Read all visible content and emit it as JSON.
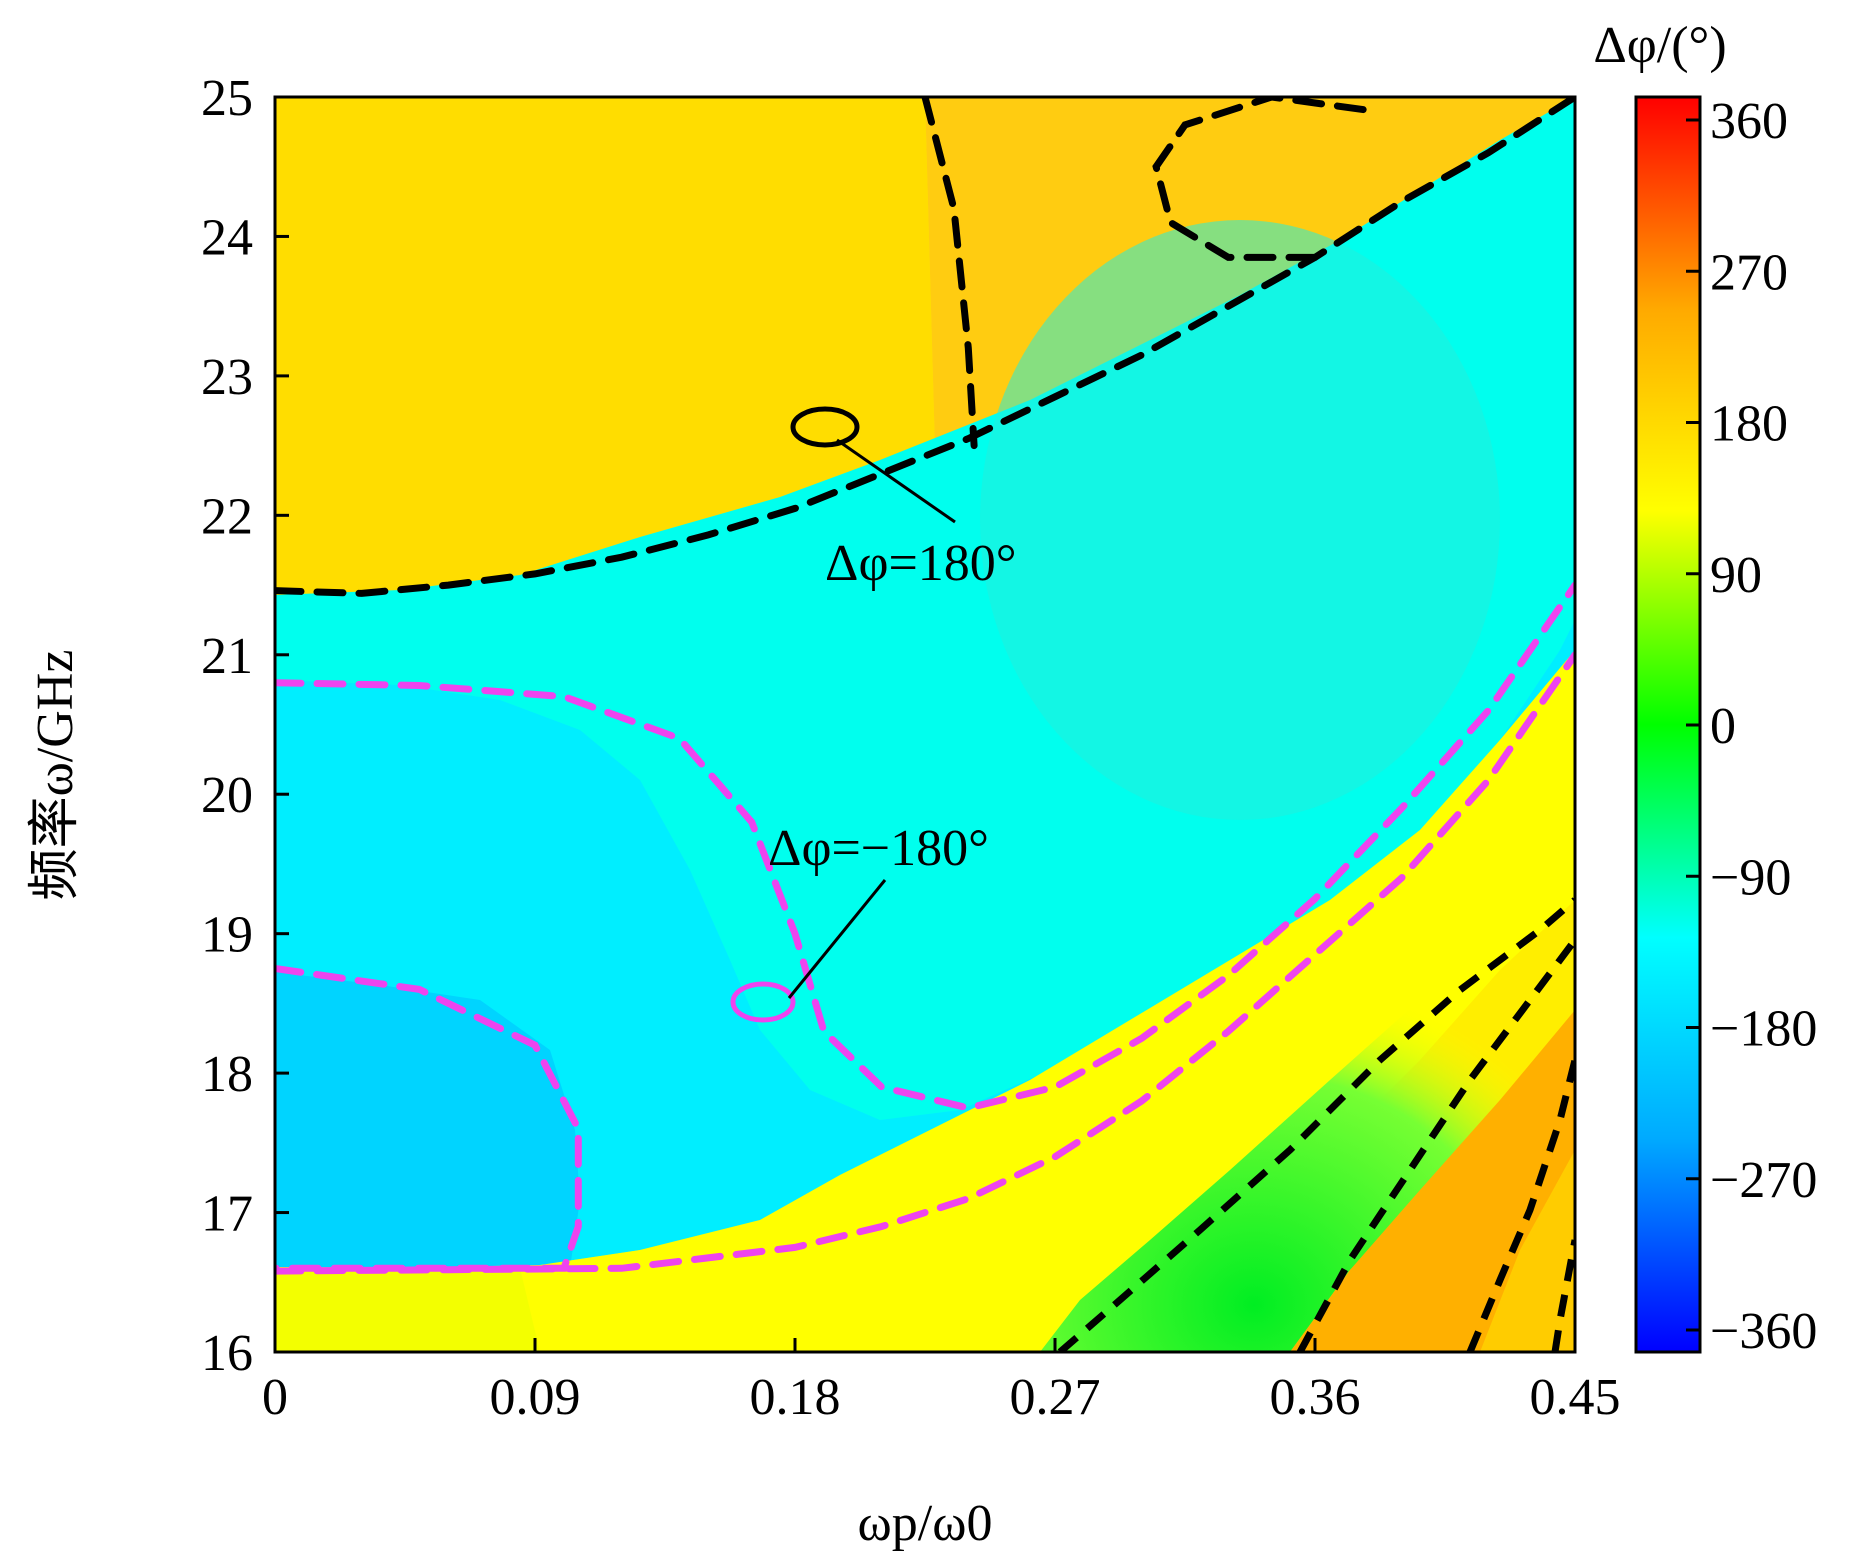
{
  "chart_data": {
    "type": "heatmap",
    "title": "",
    "xlabel": "ωp/ω0",
    "ylabel": "频率ω/GHz",
    "colorbar_label": "Δφ/(°)",
    "xlim": [
      0,
      0.45
    ],
    "ylim": [
      16,
      25
    ],
    "x_ticks": [
      "0",
      "0.09",
      "0.18",
      "0.27",
      "0.36",
      "0.45"
    ],
    "x_tick_values": [
      0,
      0.09,
      0.18,
      0.27,
      0.36,
      0.45
    ],
    "y_ticks": [
      "16",
      "17",
      "18",
      "19",
      "20",
      "21",
      "22",
      "23",
      "24",
      "25"
    ],
    "y_tick_values": [
      16,
      17,
      18,
      19,
      20,
      21,
      22,
      23,
      24,
      25
    ],
    "colorbar_ticks": [
      "360",
      "270",
      "180",
      "90",
      "0",
      "−90",
      "−180",
      "−270",
      "−360"
    ],
    "colorbar_tick_values": [
      360,
      270,
      180,
      90,
      0,
      -90,
      -180,
      -270,
      -360
    ],
    "colorbar_range": [
      -360,
      360
    ],
    "colormap": [
      "#0000ff",
      "#00aaff",
      "#00ffff",
      "#00ff00",
      "#ffff00",
      "#ffaa00",
      "#ff0000"
    ],
    "contour_colors": {
      "plus_180": "#000000",
      "minus_180": "#ee44ee"
    },
    "region_values": [
      {
        "region": "upper-left",
        "x": 0.05,
        "y": 23.5,
        "value": 160
      },
      {
        "region": "upper-band",
        "x": 0.3,
        "y": 23.5,
        "value": 190
      },
      {
        "region": "central-band",
        "x": 0.3,
        "y": 21.0,
        "value": -175
      },
      {
        "region": "left-inner",
        "x": 0.1,
        "y": 19.5,
        "value": -185
      },
      {
        "region": "lower-left-core",
        "x": 0.04,
        "y": 17.5,
        "value": -195
      },
      {
        "region": "lower-band",
        "x": 0.2,
        "y": 16.4,
        "value": 150
      },
      {
        "region": "lower-right-green",
        "x": 0.33,
        "y": 16.4,
        "value": 40
      },
      {
        "region": "lower-right-orange",
        "x": 0.4,
        "y": 16.5,
        "value": 220
      }
    ],
    "contours": [
      {
        "name": "Δφ=180°",
        "color": "#000000",
        "style": "dashed",
        "x": [
          0,
          0.03,
          0.06,
          0.09,
          0.12,
          0.15,
          0.18,
          0.21,
          0.24,
          0.27,
          0.3,
          0.33,
          0.36,
          0.39,
          0.42,
          0.45
        ],
        "y": [
          21.46,
          21.44,
          21.5,
          21.58,
          21.7,
          21.86,
          22.05,
          22.3,
          22.55,
          22.85,
          23.15,
          23.5,
          23.85,
          24.25,
          24.6,
          25.0
        ]
      },
      {
        "name": "Δφ=180° upper",
        "color": "#000000",
        "style": "dashed",
        "x": [
          0.225,
          0.235,
          0.24,
          0.242
        ],
        "y": [
          25.0,
          24.2,
          23.2,
          22.5
        ]
      },
      {
        "name": "Δφ=180° loop",
        "color": "#000000",
        "style": "dashed",
        "x": [
          0.36,
          0.33,
          0.31,
          0.305,
          0.315,
          0.345,
          0.38
        ],
        "y": [
          23.85,
          23.85,
          24.1,
          24.5,
          24.8,
          25.0,
          24.9
        ]
      },
      {
        "name": "Δφ=-180° outer",
        "color": "#ee44ee",
        "style": "dashed",
        "x": [
          0,
          0.06,
          0.12,
          0.18,
          0.21,
          0.24,
          0.27,
          0.3,
          0.33,
          0.36,
          0.39,
          0.42,
          0.45
        ],
        "y": [
          16.58,
          16.59,
          16.6,
          16.75,
          16.9,
          17.1,
          17.4,
          17.8,
          18.3,
          18.85,
          19.4,
          20.1,
          21.0
        ]
      },
      {
        "name": "Δφ=-180° inner",
        "color": "#ee44ee",
        "style": "dashed",
        "x": [
          0,
          0.05,
          0.1,
          0.14,
          0.165,
          0.18,
          0.19,
          0.21,
          0.24,
          0.27,
          0.3,
          0.33,
          0.36,
          0.39,
          0.42,
          0.45
        ],
        "y": [
          20.8,
          20.78,
          20.7,
          20.4,
          19.8,
          19.0,
          18.3,
          17.9,
          17.75,
          17.9,
          18.25,
          18.7,
          19.25,
          19.9,
          20.6,
          21.5
        ]
      },
      {
        "name": "Δφ=-180° core",
        "color": "#ee44ee",
        "style": "dashed",
        "x": [
          0,
          0.05,
          0.09,
          0.105,
          0.105,
          0.1,
          0.05,
          0
        ],
        "y": [
          18.75,
          18.6,
          18.2,
          17.6,
          16.9,
          16.6,
          16.6,
          16.6
        ]
      }
    ],
    "annotations": [
      {
        "text": "Δφ=180°",
        "points_to": "Δφ=180°"
      },
      {
        "text": "Δφ=−180°",
        "points_to": "Δφ=-180° inner"
      }
    ]
  }
}
